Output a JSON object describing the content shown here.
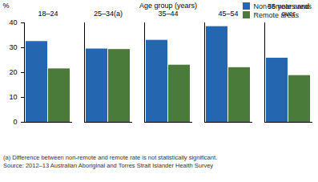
{
  "chart_data": {
    "type": "bar",
    "categories": [
      "18–24",
      "25–34(a)",
      "35–44",
      "45–54",
      "55 years and over"
    ],
    "series": [
      {
        "name": "Non-remote areas",
        "color": "#2566b0",
        "values": [
          32.5,
          29.5,
          33,
          38.5,
          25.8
        ]
      },
      {
        "name": "Remote areas",
        "color": "#4a7b3b",
        "values": [
          21.5,
          29.3,
          23,
          22,
          18.8
        ]
      }
    ],
    "y_label": "%",
    "x_label": "Age group (years)",
    "ylim": [
      0,
      40
    ],
    "yticks": [
      0,
      10,
      20,
      30,
      40
    ],
    "grid": false,
    "legend": "top right",
    "annotations": [
      "(a) Difference between non-remote and remote rate is not statistically significant.",
      "Source: 2012–13 Australian Aboriginal and Torres Strait Islander Health Survey"
    ]
  }
}
